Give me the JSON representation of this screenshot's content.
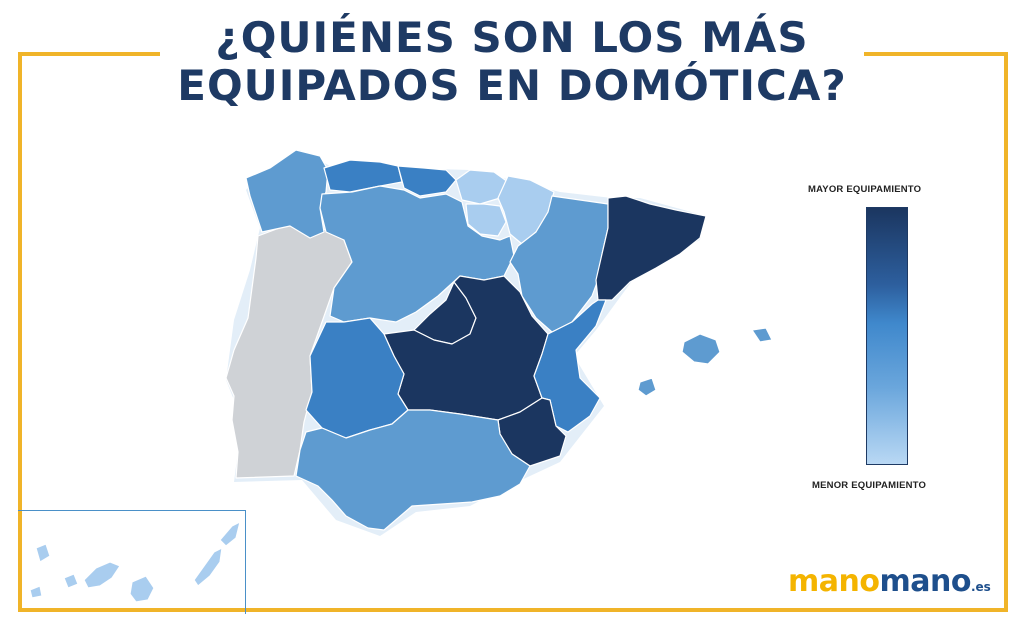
{
  "title": {
    "line1": "¿Quiénes son los más",
    "line2": "equipados en domótica?"
  },
  "legend": {
    "top_label": "MAYOR EQUIPAMIENTO",
    "bottom_label": "MENOR EQUIPAMIENTO",
    "gradient_colors": [
      "#1b3660",
      "#2d5f9e",
      "#3f88cc",
      "#6aa6dc",
      "#b9d8f4"
    ]
  },
  "logo": {
    "part1": "mano",
    "part2": "mano",
    "suffix": ".es",
    "colors": {
      "part1": "#f4b400",
      "part2": "#1e4f8c"
    }
  },
  "palette": {
    "very_high": "#1b3660",
    "high": "#3a80c4",
    "medium": "#5e9bd0",
    "low": "#a9cdef",
    "no_data": "#cfd2d6",
    "frame": "#f0b429"
  },
  "regions": [
    {
      "id": "galicia",
      "level": "medium"
    },
    {
      "id": "asturias",
      "level": "high"
    },
    {
      "id": "cantabria",
      "level": "high"
    },
    {
      "id": "pais-vasco",
      "level": "low"
    },
    {
      "id": "navarra",
      "level": "low"
    },
    {
      "id": "la-rioja",
      "level": "low"
    },
    {
      "id": "castilla-y-leon",
      "level": "medium"
    },
    {
      "id": "aragon",
      "level": "medium"
    },
    {
      "id": "cataluna",
      "level": "very_high"
    },
    {
      "id": "madrid",
      "level": "very_high"
    },
    {
      "id": "castilla-la-mancha",
      "level": "very_high"
    },
    {
      "id": "extremadura",
      "level": "high"
    },
    {
      "id": "comunidad-valenciana",
      "level": "high"
    },
    {
      "id": "murcia",
      "level": "very_high"
    },
    {
      "id": "andalucia",
      "level": "medium"
    },
    {
      "id": "baleares",
      "level": "medium"
    },
    {
      "id": "canarias",
      "level": "low"
    },
    {
      "id": "portugal",
      "level": "no_data"
    }
  ]
}
